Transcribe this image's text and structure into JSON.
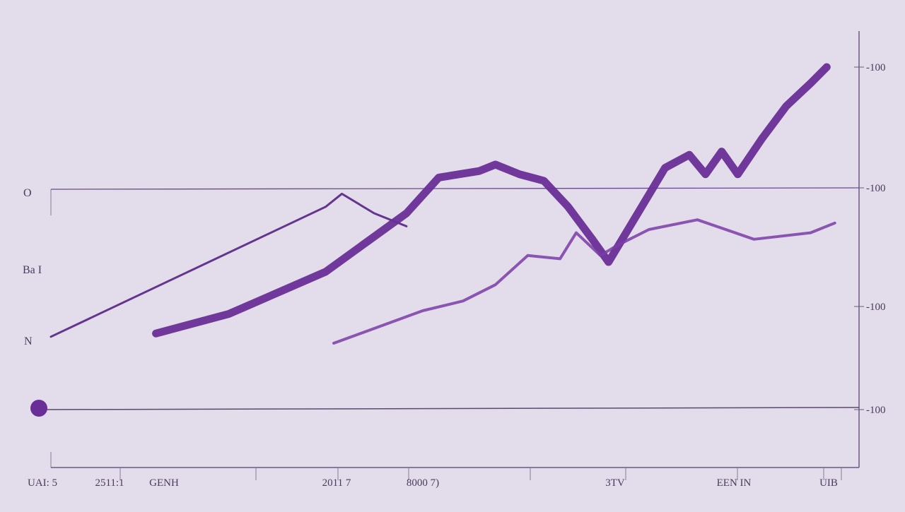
{
  "chart_data": {
    "type": "line",
    "title": "",
    "xlabel": "",
    "ylabel": "",
    "grid": false,
    "legend": "none",
    "x_tick_labels": [
      "UAI: 5",
      "2511:1",
      "GENH",
      "2011 7",
      "8000 7)",
      "3TV",
      "EEN IN",
      "UIB"
    ],
    "left_labels": [
      "O",
      "Ba I",
      "N"
    ],
    "right_tick_labels": [
      "-100",
      "-100",
      "-100",
      "-100"
    ],
    "y_range": [
      0,
      100
    ],
    "series": [
      {
        "color": "#5d2a8a",
        "points": [
          [
            0,
            22
          ],
          [
            34,
            62
          ],
          [
            36,
            66
          ],
          [
            40,
            60
          ],
          [
            44,
            56
          ]
        ]
      },
      {
        "color": "#6a2e98",
        "points": [
          [
            13,
            23
          ],
          [
            22,
            29
          ],
          [
            34,
            42
          ],
          [
            44,
            60
          ],
          [
            48,
            71
          ],
          [
            53,
            73
          ],
          [
            55,
            75
          ],
          [
            58,
            72
          ],
          [
            61,
            70
          ],
          [
            64,
            62
          ],
          [
            67,
            52
          ],
          [
            69,
            45
          ],
          [
            76,
            74
          ],
          [
            79,
            78
          ],
          [
            81,
            72
          ],
          [
            83,
            79
          ],
          [
            85,
            72
          ],
          [
            88,
            83
          ],
          [
            91,
            93
          ],
          [
            94,
            100
          ],
          [
            96,
            105
          ]
        ]
      },
      {
        "color": "#7a3ca8",
        "points": [
          [
            35,
            20
          ],
          [
            46,
            30
          ],
          [
            51,
            33
          ],
          [
            55,
            38
          ],
          [
            59,
            47
          ],
          [
            63,
            46
          ],
          [
            65,
            54
          ],
          [
            68,
            47
          ],
          [
            70,
            50
          ],
          [
            74,
            55
          ],
          [
            80,
            58
          ],
          [
            87,
            52
          ],
          [
            94,
            54
          ],
          [
            97,
            57
          ]
        ]
      }
    ]
  }
}
